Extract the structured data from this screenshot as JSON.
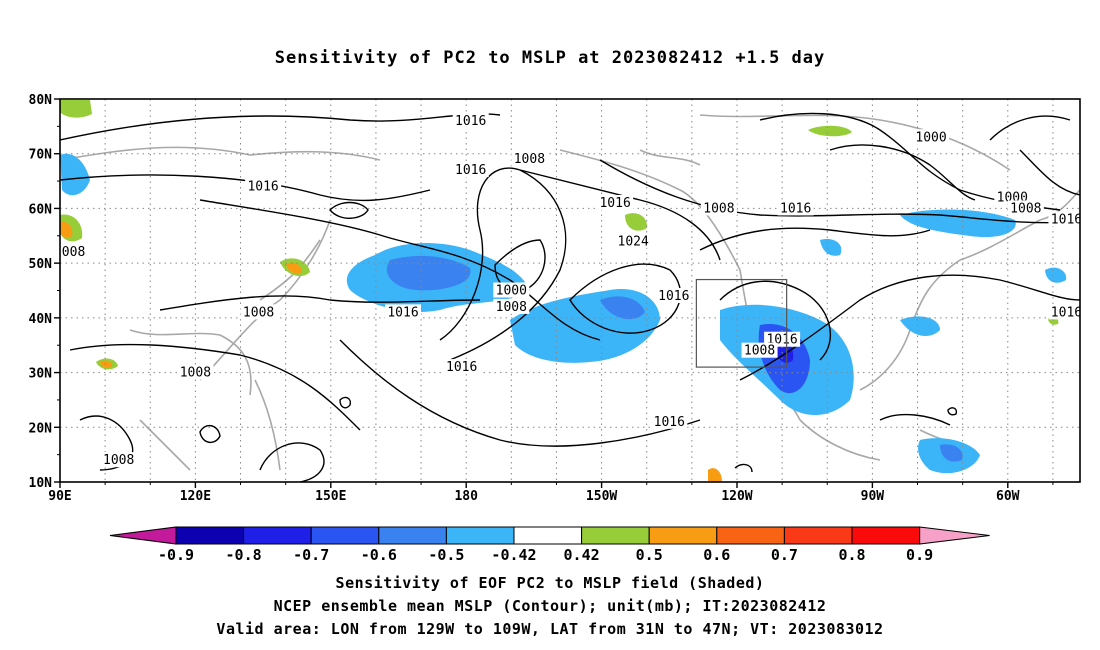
{
  "title": "Sensitivity of PC2 to MSLP at 2023082412 +1.5 day",
  "map": {
    "lat_labels": [
      "80N",
      "70N",
      "60N",
      "50N",
      "40N",
      "30N",
      "20N",
      "10N"
    ],
    "lat_values": [
      80,
      70,
      60,
      50,
      40,
      30,
      20,
      10
    ],
    "lon_labels": [
      "90E",
      "120E",
      "150E",
      "180",
      "150W",
      "120W",
      "90W",
      "60W"
    ],
    "lon_values": [
      90,
      120,
      150,
      180,
      210,
      240,
      270,
      300
    ],
    "lon_range": [
      90,
      316
    ],
    "lat_range": [
      10,
      80
    ],
    "valid_box": {
      "lon": [
        231,
        251
      ],
      "lat": [
        31,
        47
      ]
    },
    "contour_labels": [
      {
        "text": "1016",
        "lon": 181,
        "lat": 76
      },
      {
        "text": "1000",
        "lon": 283,
        "lat": 73
      },
      {
        "text": "1016",
        "lon": 135,
        "lat": 64
      },
      {
        "text": "1016",
        "lon": 181,
        "lat": 67
      },
      {
        "text": "1008",
        "lon": 194,
        "lat": 69
      },
      {
        "text": "1000",
        "lon": 301,
        "lat": 62
      },
      {
        "text": "1016",
        "lon": 213,
        "lat": 61
      },
      {
        "text": "1008",
        "lon": 236,
        "lat": 60
      },
      {
        "text": "1016",
        "lon": 253,
        "lat": 60
      },
      {
        "text": "1008",
        "lon": 304,
        "lat": 60
      },
      {
        "text": "1016",
        "lon": 313,
        "lat": 58
      },
      {
        "text": "1024",
        "lon": 217,
        "lat": 54
      },
      {
        "text": "008",
        "lon": 93,
        "lat": 52
      },
      {
        "text": "1000",
        "lon": 190,
        "lat": 45
      },
      {
        "text": "1008",
        "lon": 190,
        "lat": 42
      },
      {
        "text": "1008",
        "lon": 134,
        "lat": 41
      },
      {
        "text": "1016",
        "lon": 166,
        "lat": 41
      },
      {
        "text": "1016",
        "lon": 226,
        "lat": 44
      },
      {
        "text": "1016",
        "lon": 250,
        "lat": 36
      },
      {
        "text": "1008",
        "lon": 245,
        "lat": 34
      },
      {
        "text": "1016",
        "lon": 313,
        "lat": 41
      },
      {
        "text": "1008",
        "lon": 120,
        "lat": 30
      },
      {
        "text": "1016",
        "lon": 179,
        "lat": 31
      },
      {
        "text": "1016",
        "lon": 225,
        "lat": 21
      },
      {
        "text": "1008",
        "lon": 103,
        "lat": 14
      }
    ]
  },
  "colorbar": {
    "labels": [
      "-0.9",
      "-0.8",
      "-0.7",
      "-0.6",
      "-0.5",
      "-0.42",
      "0.42",
      "0.5",
      "0.6",
      "0.7",
      "0.8",
      "0.9"
    ],
    "colors": [
      "#0d00b0",
      "#1f1fe8",
      "#2b55f2",
      "#3a82f0",
      "#3cb4f8",
      "#ffffff",
      "#98cd3a",
      "#f89c13",
      "#f86414",
      "#fa3a16",
      "#fa0a0a"
    ],
    "low_end_color": "#c31a9c",
    "high_end_color": "#f7a1c8"
  },
  "footer": {
    "line1": "Sensitivity of EOF PC2 to MSLP field (Shaded)",
    "line2": "NCEP ensemble mean MSLP (Contour); unit(mb); IT:2023082412",
    "line3": "Valid area: LON from 129W to 109W, LAT from 31N to 47N; VT: 2023083012"
  }
}
